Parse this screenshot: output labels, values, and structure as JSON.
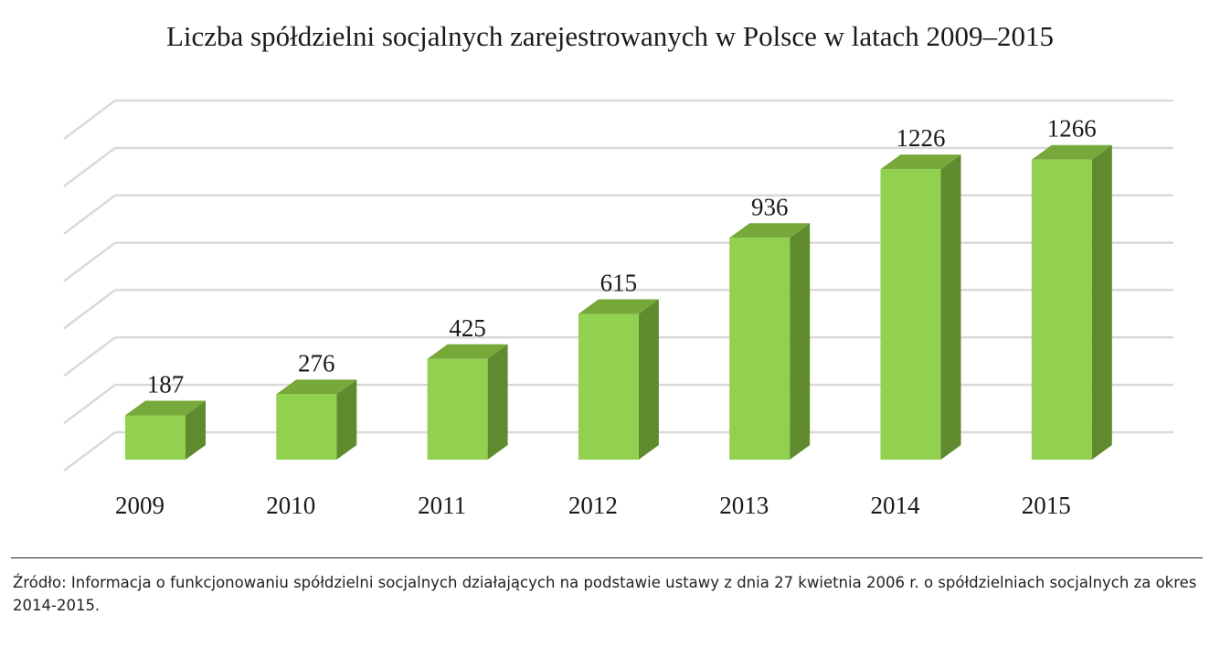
{
  "chart_data": {
    "type": "bar",
    "title": "Liczba spółdzielni socjalnych zarejestrowanych w Polsce w latach 2009–2015",
    "categories": [
      "2009",
      "2010",
      "2011",
      "2012",
      "2013",
      "2014",
      "2015"
    ],
    "values": [
      187,
      276,
      425,
      615,
      936,
      1226,
      1266
    ],
    "xlabel": "",
    "ylabel": "",
    "ylim": [
      0,
      1400
    ],
    "grid": true,
    "legend": "none",
    "style": "3d-column",
    "colors": {
      "bar_front": "#92d050",
      "bar_top": "#77a83a",
      "bar_side": "#5f8a2e",
      "grid": "#d9d9d9"
    }
  },
  "source": {
    "text": "Źródło: Informacja o funkcjonowaniu spółdzielni socjalnych działających na podstawie ustawy z dnia 27 kwietnia 2006 r.  o spółdzielniach socjalnych za okres 2014-2015."
  }
}
